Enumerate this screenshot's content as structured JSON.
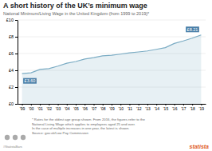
{
  "chart_data": {
    "type": "line",
    "title": "A short history of the UK’s minimum wage",
    "subtitle": "National Minimum/Living Wage in the United Kingdom (from 1999 to 2019)*",
    "categories": [
      "'99",
      "'00",
      "'01",
      "'02",
      "'03",
      "'04",
      "'05",
      "'06",
      "'07",
      "'08",
      "'09",
      "'10",
      "'11",
      "'12",
      "'13",
      "'14",
      "'15",
      "'16",
      "'17",
      "'18",
      "'19"
    ],
    "values": [
      3.6,
      3.7,
      4.1,
      4.2,
      4.5,
      4.85,
      5.05,
      5.35,
      5.52,
      5.73,
      5.8,
      5.93,
      6.08,
      6.19,
      6.31,
      6.5,
      6.7,
      7.2,
      7.5,
      7.83,
      8.21
    ],
    "color": "#7BACC4",
    "ylim": [
      0,
      10
    ],
    "yticks": [
      {
        "value": 0,
        "label": "£0"
      },
      {
        "value": 2,
        "label": "£2"
      },
      {
        "value": 4,
        "label": "£4"
      },
      {
        "value": 6,
        "label": "£6"
      },
      {
        "value": 8,
        "label": "£8"
      },
      {
        "value": 10,
        "label": "£10"
      }
    ],
    "grid": true,
    "annotations": [
      "£3.60",
      "£8.21"
    ],
    "footer": [
      "* Rates for the oldest age group shown. From 2016, the figures refer to the",
      "National Living Wage which applies to employees aged 25 and over.",
      "In the case of multiple increases in one year, the latest is shown.",
      "Source: gov.uk/Low Pay Commission"
    ],
    "credits": [
      "statista",
      "#StatistaBars"
    ]
  }
}
